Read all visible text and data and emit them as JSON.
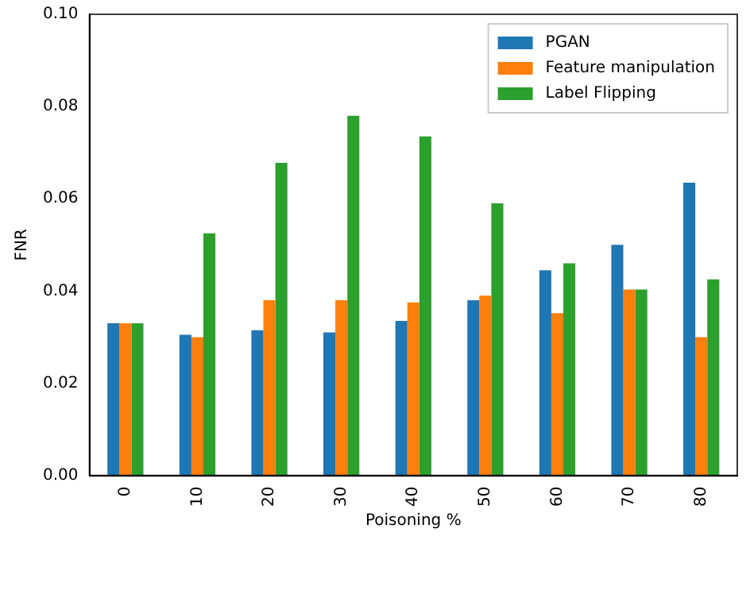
{
  "chart_data": {
    "type": "bar",
    "xlabel": "Poisoning %",
    "ylabel": "FNR",
    "categories": [
      "0",
      "10",
      "20",
      "30",
      "40",
      "50",
      "60",
      "70",
      "80"
    ],
    "series": [
      {
        "name": "PGAN",
        "color": "#1f77b4",
        "values": [
          0.033,
          0.0305,
          0.0315,
          0.031,
          0.0335,
          0.038,
          0.0445,
          0.05,
          0.0635
        ]
      },
      {
        "name": "Feature manipulation",
        "color": "#ff7f0e",
        "values": [
          0.033,
          0.03,
          0.038,
          0.038,
          0.0375,
          0.039,
          0.0352,
          0.0403,
          0.03
        ]
      },
      {
        "name": "Label Flipping",
        "color": "#2ca02c",
        "values": [
          0.033,
          0.0525,
          0.0678,
          0.078,
          0.0735,
          0.059,
          0.046,
          0.0403,
          0.0425
        ]
      }
    ],
    "ylim": [
      0,
      0.1
    ],
    "yticks": [
      {
        "value": 0,
        "label": "0.00"
      },
      {
        "value": 0.02,
        "label": "0.02"
      },
      {
        "value": 0.04,
        "label": "0.04"
      },
      {
        "value": 0.06,
        "label": "0.06"
      },
      {
        "value": 0.08,
        "label": "0.08"
      },
      {
        "value": 0.1,
        "label": "0.10"
      }
    ],
    "grid": false,
    "legend": "top right"
  }
}
